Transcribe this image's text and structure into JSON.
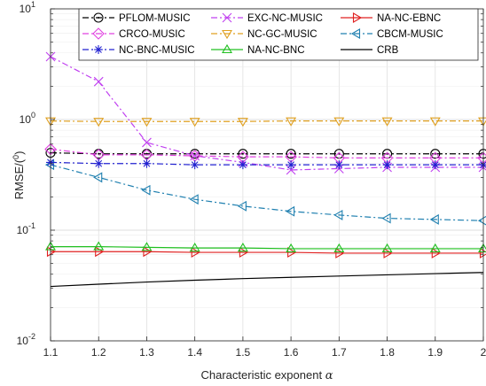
{
  "chart_data": {
    "type": "line",
    "xlabel": "Characteristic exponent",
    "xlabel_symbol": "α",
    "ylabel": "RMSE/(",
    "ylabel_sup": "0",
    "ylabel_close": ")",
    "yscale": "log",
    "xlim": [
      1.1,
      2.0
    ],
    "ylim": [
      0.01,
      10
    ],
    "grid": true,
    "legend_location": "top",
    "x": [
      1.1,
      1.2,
      1.3,
      1.4,
      1.5,
      1.6,
      1.7,
      1.8,
      1.9,
      2.0
    ],
    "x_tick_labels": [
      "1.1",
      "1.2",
      "1.3",
      "1.4",
      "1.5",
      "1.6",
      "1.7",
      "1.8",
      "1.9",
      "2"
    ],
    "y_ticks": [
      {
        "value": 10,
        "base": "10",
        "exp": "1"
      },
      {
        "value": 1,
        "base": "10",
        "exp": "0"
      },
      {
        "value": 0.1,
        "base": "10",
        "exp": "-1"
      },
      {
        "value": 0.01,
        "base": "10",
        "exp": "-2"
      }
    ],
    "series": [
      {
        "name": "PFLOM-MUSIC",
        "color": "#000000",
        "dash": "dashdot",
        "marker": "circle-dot",
        "values": [
          0.5,
          0.49,
          0.49,
          0.49,
          0.49,
          0.49,
          0.49,
          0.49,
          0.49,
          0.49
        ]
      },
      {
        "name": "EXC-NC-MUSIC",
        "color": "#c040f0",
        "dash": "dashdot",
        "marker": "x",
        "values": [
          3.7,
          2.2,
          0.62,
          0.47,
          0.41,
          0.35,
          0.36,
          0.37,
          0.37,
          0.37
        ]
      },
      {
        "name": "NA-NC-EBNC",
        "color": "#e02020",
        "dash": "solid",
        "marker": "triangle-right",
        "values": [
          0.064,
          0.064,
          0.064,
          0.063,
          0.063,
          0.063,
          0.062,
          0.062,
          0.062,
          0.062
        ]
      },
      {
        "name": "CRCO-MUSIC",
        "color": "#e040e0",
        "dash": "dashdot",
        "marker": "diamond",
        "values": [
          0.54,
          0.48,
          0.48,
          0.47,
          0.46,
          0.46,
          0.45,
          0.45,
          0.45,
          0.45
        ]
      },
      {
        "name": "NC-GC-MUSIC",
        "color": "#e0a020",
        "dash": "dashdot",
        "marker": "triangle-down",
        "values": [
          0.97,
          0.96,
          0.96,
          0.96,
          0.96,
          0.97,
          0.97,
          0.97,
          0.97,
          0.97
        ]
      },
      {
        "name": "CBCM-MUSIC",
        "color": "#2080b0",
        "dash": "dashdot",
        "marker": "triangle-left",
        "values": [
          0.39,
          0.3,
          0.23,
          0.19,
          0.165,
          0.148,
          0.137,
          0.128,
          0.125,
          0.122
        ]
      },
      {
        "name": "NC-BNC-MUSIC",
        "color": "#2020d0",
        "dash": "dashdot",
        "marker": "asterisk",
        "values": [
          0.41,
          0.4,
          0.4,
          0.39,
          0.39,
          0.39,
          0.39,
          0.39,
          0.39,
          0.39
        ]
      },
      {
        "name": "NA-NC-BNC",
        "color": "#20c020",
        "dash": "solid",
        "marker": "triangle-up",
        "values": [
          0.071,
          0.071,
          0.07,
          0.069,
          0.069,
          0.068,
          0.068,
          0.068,
          0.068,
          0.068
        ]
      },
      {
        "name": "CRB",
        "color": "#000000",
        "dash": "solid",
        "marker": "none",
        "values": [
          0.031,
          0.0325,
          0.034,
          0.0353,
          0.0365,
          0.0375,
          0.0385,
          0.0395,
          0.0405,
          0.0415
        ]
      }
    ]
  }
}
